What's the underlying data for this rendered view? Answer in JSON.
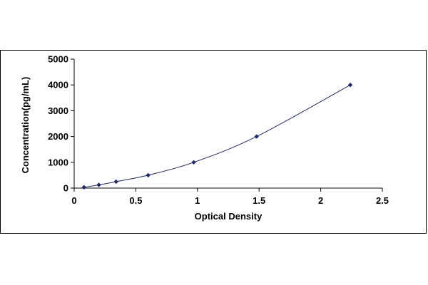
{
  "chart_data": {
    "type": "scatter",
    "title": "",
    "xlabel": "Optical Density",
    "ylabel": "Concentration(pg/mL)",
    "xlim": [
      0,
      2.5
    ],
    "ylim": [
      0,
      5000
    ],
    "x_ticks": [
      "0",
      "0.5",
      "1",
      "1.5",
      "2",
      "2.5"
    ],
    "y_ticks": [
      "0",
      "1000",
      "2000",
      "3000",
      "4000",
      "5000"
    ],
    "grid": false,
    "legend": "none",
    "series": [
      {
        "points": [
          {
            "x": 0.08,
            "y": 31.2
          },
          {
            "x": 0.2,
            "y": 125
          },
          {
            "x": 0.34,
            "y": 250
          },
          {
            "x": 0.6,
            "y": 500
          },
          {
            "x": 0.97,
            "y": 1000
          },
          {
            "x": 1.48,
            "y": 2000
          },
          {
            "x": 2.24,
            "y": 4000
          }
        ],
        "color": "#1f2a6e",
        "trendline": "fitted curve"
      }
    ]
  }
}
